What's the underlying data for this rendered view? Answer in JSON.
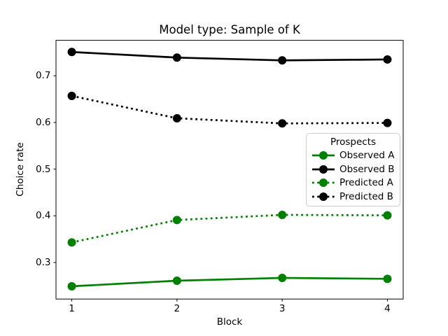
{
  "chart_data": {
    "type": "line",
    "title": "Model type: Sample of K",
    "xlabel": "Block",
    "ylabel": "Choice rate",
    "x": [
      1,
      2,
      3,
      4
    ],
    "xticks": [
      "1",
      "2",
      "3",
      "4"
    ],
    "yticks": [
      0.3,
      0.4,
      0.5,
      0.6,
      0.7
    ],
    "xlim": [
      0.85,
      4.15
    ],
    "ylim": [
      0.2217,
      0.776
    ],
    "grid": false,
    "legend_title": "Prospects",
    "legend_position": "center right",
    "series": [
      {
        "name": "Observed A",
        "color": "#008000",
        "line_style": "solid",
        "marker": "circle",
        "values": [
          0.249,
          0.261,
          0.267,
          0.265
        ]
      },
      {
        "name": "Observed B",
        "color": "#000000",
        "line_style": "solid",
        "marker": "circle",
        "values": [
          0.751,
          0.739,
          0.733,
          0.735
        ]
      },
      {
        "name": "Predicted A",
        "color": "#008000",
        "line_style": "dotted",
        "marker": "circle",
        "values": [
          0.343,
          0.391,
          0.402,
          0.401
        ]
      },
      {
        "name": "Predicted B",
        "color": "#000000",
        "line_style": "dotted",
        "marker": "circle",
        "values": [
          0.657,
          0.609,
          0.598,
          0.599
        ]
      }
    ],
    "colors": {
      "frame": "#000000",
      "legend_border": "#cccccc",
      "background": "#ffffff"
    }
  }
}
